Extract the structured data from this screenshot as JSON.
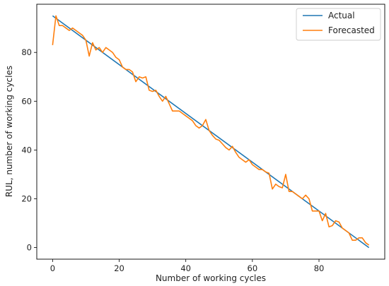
{
  "chart_data": {
    "type": "line",
    "xlabel": "Number of working cycles",
    "ylabel": "RUL, number of working cycles",
    "xlim": [
      -4.75,
      99.75
    ],
    "ylim": [
      -4.75,
      99.75
    ],
    "xticks": [
      0,
      20,
      40,
      60,
      80
    ],
    "yticks": [
      0,
      20,
      40,
      60,
      80
    ],
    "grid": false,
    "legend_position": "top-right",
    "series": [
      {
        "name": "Actual",
        "color": "#1f77b4",
        "x": [
          0,
          95
        ],
        "y": [
          95,
          0
        ]
      },
      {
        "name": "Forecasted",
        "color": "#ff7f0e",
        "x": [
          0,
          1,
          2,
          3,
          4,
          5,
          6,
          7,
          8,
          9,
          10,
          11,
          12,
          13,
          14,
          15,
          16,
          17,
          18,
          19,
          20,
          21,
          22,
          23,
          24,
          25,
          26,
          27,
          28,
          29,
          30,
          31,
          32,
          33,
          34,
          35,
          36,
          37,
          38,
          39,
          40,
          41,
          42,
          43,
          44,
          45,
          46,
          47,
          48,
          49,
          50,
          51,
          52,
          53,
          54,
          55,
          56,
          57,
          58,
          59,
          60,
          61,
          62,
          63,
          64,
          65,
          66,
          67,
          68,
          69,
          70,
          71,
          72,
          73,
          74,
          75,
          76,
          77,
          78,
          79,
          80,
          81,
          82,
          83,
          84,
          85,
          86,
          87,
          88,
          89,
          90,
          91,
          92,
          93,
          94,
          95
        ],
        "y": [
          83,
          95,
          91,
          91,
          90,
          89,
          90,
          89,
          88,
          87,
          85,
          78.5,
          84,
          81,
          82,
          80,
          82,
          81,
          80,
          78,
          77,
          74,
          73,
          73,
          72,
          68,
          70,
          69.5,
          70,
          64.5,
          64,
          64.5,
          62,
          60,
          62,
          59,
          56,
          56,
          56,
          55,
          54,
          53,
          52,
          50,
          49,
          50,
          52.5,
          48,
          46,
          44.5,
          44,
          42.5,
          41,
          40,
          41.5,
          39,
          37,
          36,
          35,
          36,
          34,
          33,
          32,
          32,
          31,
          30.5,
          24,
          26,
          25,
          24.5,
          30,
          23,
          23,
          22,
          21,
          20,
          21.5,
          20,
          15,
          15,
          15,
          11,
          14,
          8.5,
          9,
          11,
          10.5,
          8,
          7,
          6,
          3,
          3,
          4,
          4,
          2,
          1
        ]
      }
    ]
  }
}
